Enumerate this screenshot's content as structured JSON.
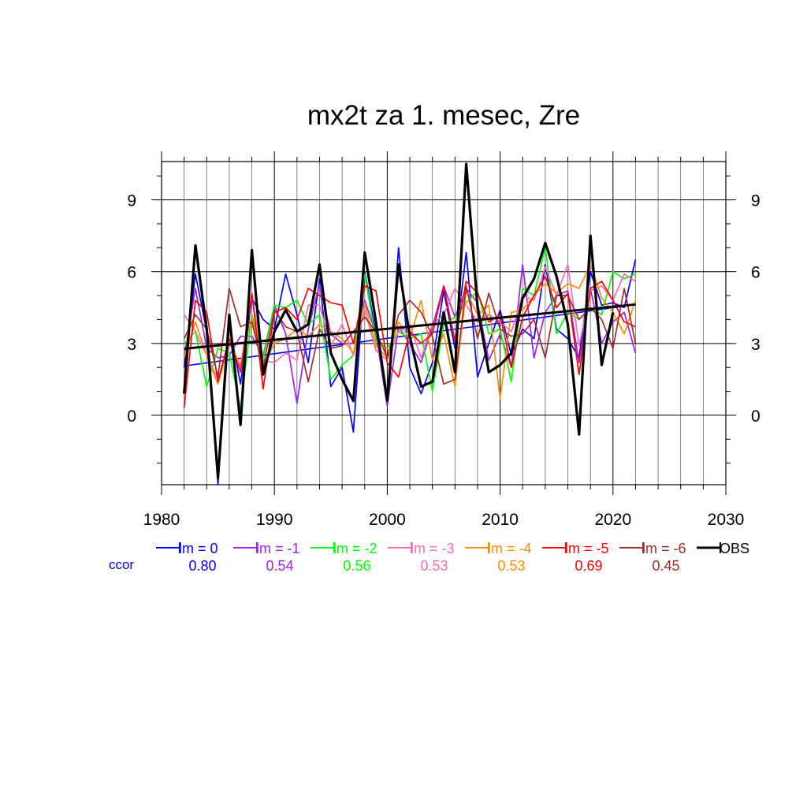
{
  "chart_data": {
    "type": "line",
    "title": "mx2t za 1. mesec, Zre",
    "xlabel": "",
    "ylabel": "",
    "xlim": [
      1980,
      2030
    ],
    "ylim": [
      -2.9,
      10.6
    ],
    "x_ticks": [
      1980,
      1990,
      2000,
      2010,
      2020,
      2030
    ],
    "x_tick_labels": [
      "1980",
      "1990",
      "2000",
      "2010",
      "2020",
      "2030"
    ],
    "y_ticks": [
      0,
      3,
      6,
      9
    ],
    "y_tick_labels": [
      "0",
      "3",
      "6",
      "9"
    ],
    "grid": true,
    "legend_position": "below",
    "ccor_label": "ccor",
    "ccor_color": "#0000ff",
    "x": [
      1982,
      1983,
      1984,
      1985,
      1986,
      1987,
      1988,
      1989,
      1990,
      1991,
      1992,
      1993,
      1994,
      1995,
      1996,
      1997,
      1998,
      1999,
      2000,
      2001,
      2002,
      2003,
      2004,
      2005,
      2006,
      2007,
      2008,
      2009,
      2010,
      2011,
      2012,
      2013,
      2014,
      2015,
      2016,
      2017,
      2018,
      2019,
      2020,
      2021,
      2022
    ],
    "series": [
      {
        "name": "lm = 0",
        "color": "#0000ff",
        "ccor": "0.80",
        "values": [
          2.0,
          5.9,
          3.5,
          -2.9,
          3.8,
          1.3,
          4.9,
          4.0,
          3.6,
          5.9,
          4.2,
          2.2,
          5.7,
          1.2,
          2.0,
          -0.7,
          6.0,
          3.4,
          0.4,
          7.0,
          2.0,
          0.9,
          2.2,
          5.2,
          2.8,
          6.8,
          1.6,
          3.0,
          4.4,
          2.5,
          3.6,
          3.2,
          6.3,
          3.6,
          3.2,
          2.4,
          6.0,
          4.6,
          4.7,
          4.5,
          6.5
        ],
        "trend": [
          2.06,
          4.62
        ]
      },
      {
        "name": "lm = -1",
        "color": "#a020f0",
        "ccor": "0.54",
        "values": [
          2.4,
          5.3,
          2.8,
          2.4,
          2.5,
          3.3,
          3.3,
          2.5,
          4.6,
          3.4,
          0.5,
          3.6,
          5.5,
          3.4,
          3.0,
          3.0,
          4.8,
          3.4,
          0.4,
          3.7,
          3.0,
          2.2,
          3.7,
          5.4,
          4.1,
          5.3,
          4.7,
          2.3,
          3.4,
          2.0,
          6.3,
          2.4,
          4.3,
          5.0,
          5.2,
          2.2,
          5.3,
          3.0,
          3.9,
          4.3,
          2.6
        ]
      },
      {
        "name": "lm = -2",
        "color": "#00ff00",
        "ccor": "0.56",
        "values": [
          3.0,
          3.5,
          1.2,
          2.8,
          2.6,
          0.3,
          4.2,
          2.4,
          4.6,
          4.5,
          4.8,
          3.8,
          4.2,
          1.5,
          2.1,
          2.5,
          5.9,
          3.1,
          2.8,
          3.5,
          3.2,
          3.4,
          1.0,
          3.8,
          4.1,
          4.7,
          5.2,
          3.4,
          3.6,
          1.4,
          5.3,
          5.0,
          7.0,
          3.4,
          4.3,
          4.0,
          4.5,
          4.2,
          6.0,
          5.7,
          5.9
        ]
      },
      {
        "name": "lm = -3",
        "color": "#ff69b4",
        "ccor": "0.53",
        "values": [
          4.2,
          3.5,
          2.5,
          1.5,
          3.1,
          2.0,
          5.0,
          2.3,
          2.2,
          2.6,
          2.3,
          4.6,
          4.6,
          2.9,
          3.8,
          2.5,
          4.4,
          2.7,
          2.3,
          3.5,
          3.8,
          2.4,
          3.8,
          4.2,
          5.3,
          4.6,
          3.9,
          4.2,
          3.9,
          3.5,
          5.0,
          4.8,
          6.2,
          5.0,
          6.3,
          2.9,
          5.2,
          5.4,
          4.8,
          5.9,
          5.6
        ]
      },
      {
        "name": "lm = -4",
        "color": "#ff8c00",
        "ccor": "0.53",
        "values": [
          2.4,
          3.9,
          2.5,
          1.3,
          3.0,
          2.1,
          4.1,
          2.0,
          3.0,
          3.2,
          3.6,
          3.3,
          3.8,
          3.5,
          3.2,
          2.6,
          4.7,
          2.9,
          2.4,
          3.9,
          3.2,
          4.8,
          2.3,
          3.4,
          1.2,
          5.2,
          4.2,
          4.6,
          0.7,
          4.3,
          4.4,
          5.0,
          5.5,
          5.1,
          5.5,
          5.3,
          6.3,
          4.9,
          4.3,
          3.4,
          4.8
        ]
      },
      {
        "name": "lm = -5",
        "color": "#ff0000",
        "ccor": "0.69",
        "values": [
          0.3,
          4.8,
          4.3,
          1.4,
          3.2,
          1.8,
          5.1,
          1.1,
          4.3,
          4.5,
          4.0,
          5.3,
          5.0,
          4.7,
          4.6,
          3.0,
          5.4,
          5.2,
          2.2,
          1.6,
          3.5,
          3.0,
          3.4,
          5.4,
          3.1,
          5.6,
          5.1,
          3.9,
          4.2,
          2.0,
          4.1,
          5.0,
          5.8,
          4.5,
          5.1,
          1.7,
          5.3,
          5.6,
          4.8,
          3.9,
          3.7
        ]
      },
      {
        "name": "lm = -6",
        "color": "#a52a2a",
        "ccor": "0.45",
        "values": [
          3.2,
          4.2,
          3.6,
          1.6,
          5.3,
          3.7,
          3.9,
          2.0,
          4.4,
          3.7,
          3.5,
          1.4,
          3.6,
          2.8,
          2.9,
          3.5,
          4.1,
          3.5,
          2.4,
          4.2,
          4.8,
          4.3,
          3.3,
          1.3,
          1.5,
          5.4,
          3.2,
          5.1,
          3.6,
          3.3,
          3.4,
          4.0,
          2.4,
          5.0,
          5.0,
          4.0,
          4.5,
          4.0,
          2.8,
          5.3,
          3.0
        ]
      },
      {
        "name": "OBS",
        "color": "#000000",
        "ccor": "",
        "values": [
          0.9,
          7.1,
          3.6,
          -2.6,
          4.2,
          -0.4,
          6.9,
          1.7,
          3.5,
          4.4,
          3.5,
          3.8,
          6.3,
          2.6,
          1.5,
          0.6,
          6.8,
          3.9,
          0.6,
          6.3,
          3.3,
          1.2,
          1.4,
          4.3,
          1.8,
          10.5,
          4.5,
          1.8,
          2.1,
          2.6,
          4.9,
          5.7,
          7.2,
          5.8,
          3.8,
          -0.8,
          7.5,
          2.1,
          4.3,
          null,
          null
        ],
        "trend": [
          2.78,
          4.63
        ]
      }
    ]
  }
}
